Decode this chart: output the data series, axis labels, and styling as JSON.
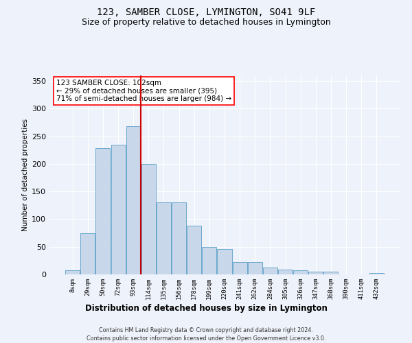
{
  "title": "123, SAMBER CLOSE, LYMINGTON, SO41 9LF",
  "subtitle": "Size of property relative to detached houses in Lymington",
  "xlabel": "Distribution of detached houses by size in Lymington",
  "ylabel": "Number of detached properties",
  "categories": [
    "8sqm",
    "29sqm",
    "50sqm",
    "72sqm",
    "93sqm",
    "114sqm",
    "135sqm",
    "156sqm",
    "178sqm",
    "199sqm",
    "220sqm",
    "241sqm",
    "262sqm",
    "284sqm",
    "305sqm",
    "326sqm",
    "347sqm",
    "368sqm",
    "390sqm",
    "411sqm",
    "432sqm"
  ],
  "values": [
    8,
    75,
    228,
    235,
    268,
    200,
    130,
    130,
    88,
    50,
    46,
    22,
    22,
    12,
    9,
    8,
    5,
    5,
    0,
    0,
    2
  ],
  "bar_color": "#c8d8ea",
  "bar_edge_color": "#5a9ec8",
  "annotation_line1": "123 SAMBER CLOSE: 102sqm",
  "annotation_line2": "← 29% of detached houses are smaller (395)",
  "annotation_line3": "71% of semi-detached houses are larger (984) →",
  "vline_color": "#cc0000",
  "vline_x": 4.5,
  "footer1": "Contains HM Land Registry data © Crown copyright and database right 2024.",
  "footer2": "Contains public sector information licensed under the Open Government Licence v3.0.",
  "bg_color": "#eef2fa",
  "ylim": [
    0,
    360
  ],
  "yticks": [
    0,
    50,
    100,
    150,
    200,
    250,
    300,
    350
  ],
  "title_fontsize": 10,
  "subtitle_fontsize": 9
}
